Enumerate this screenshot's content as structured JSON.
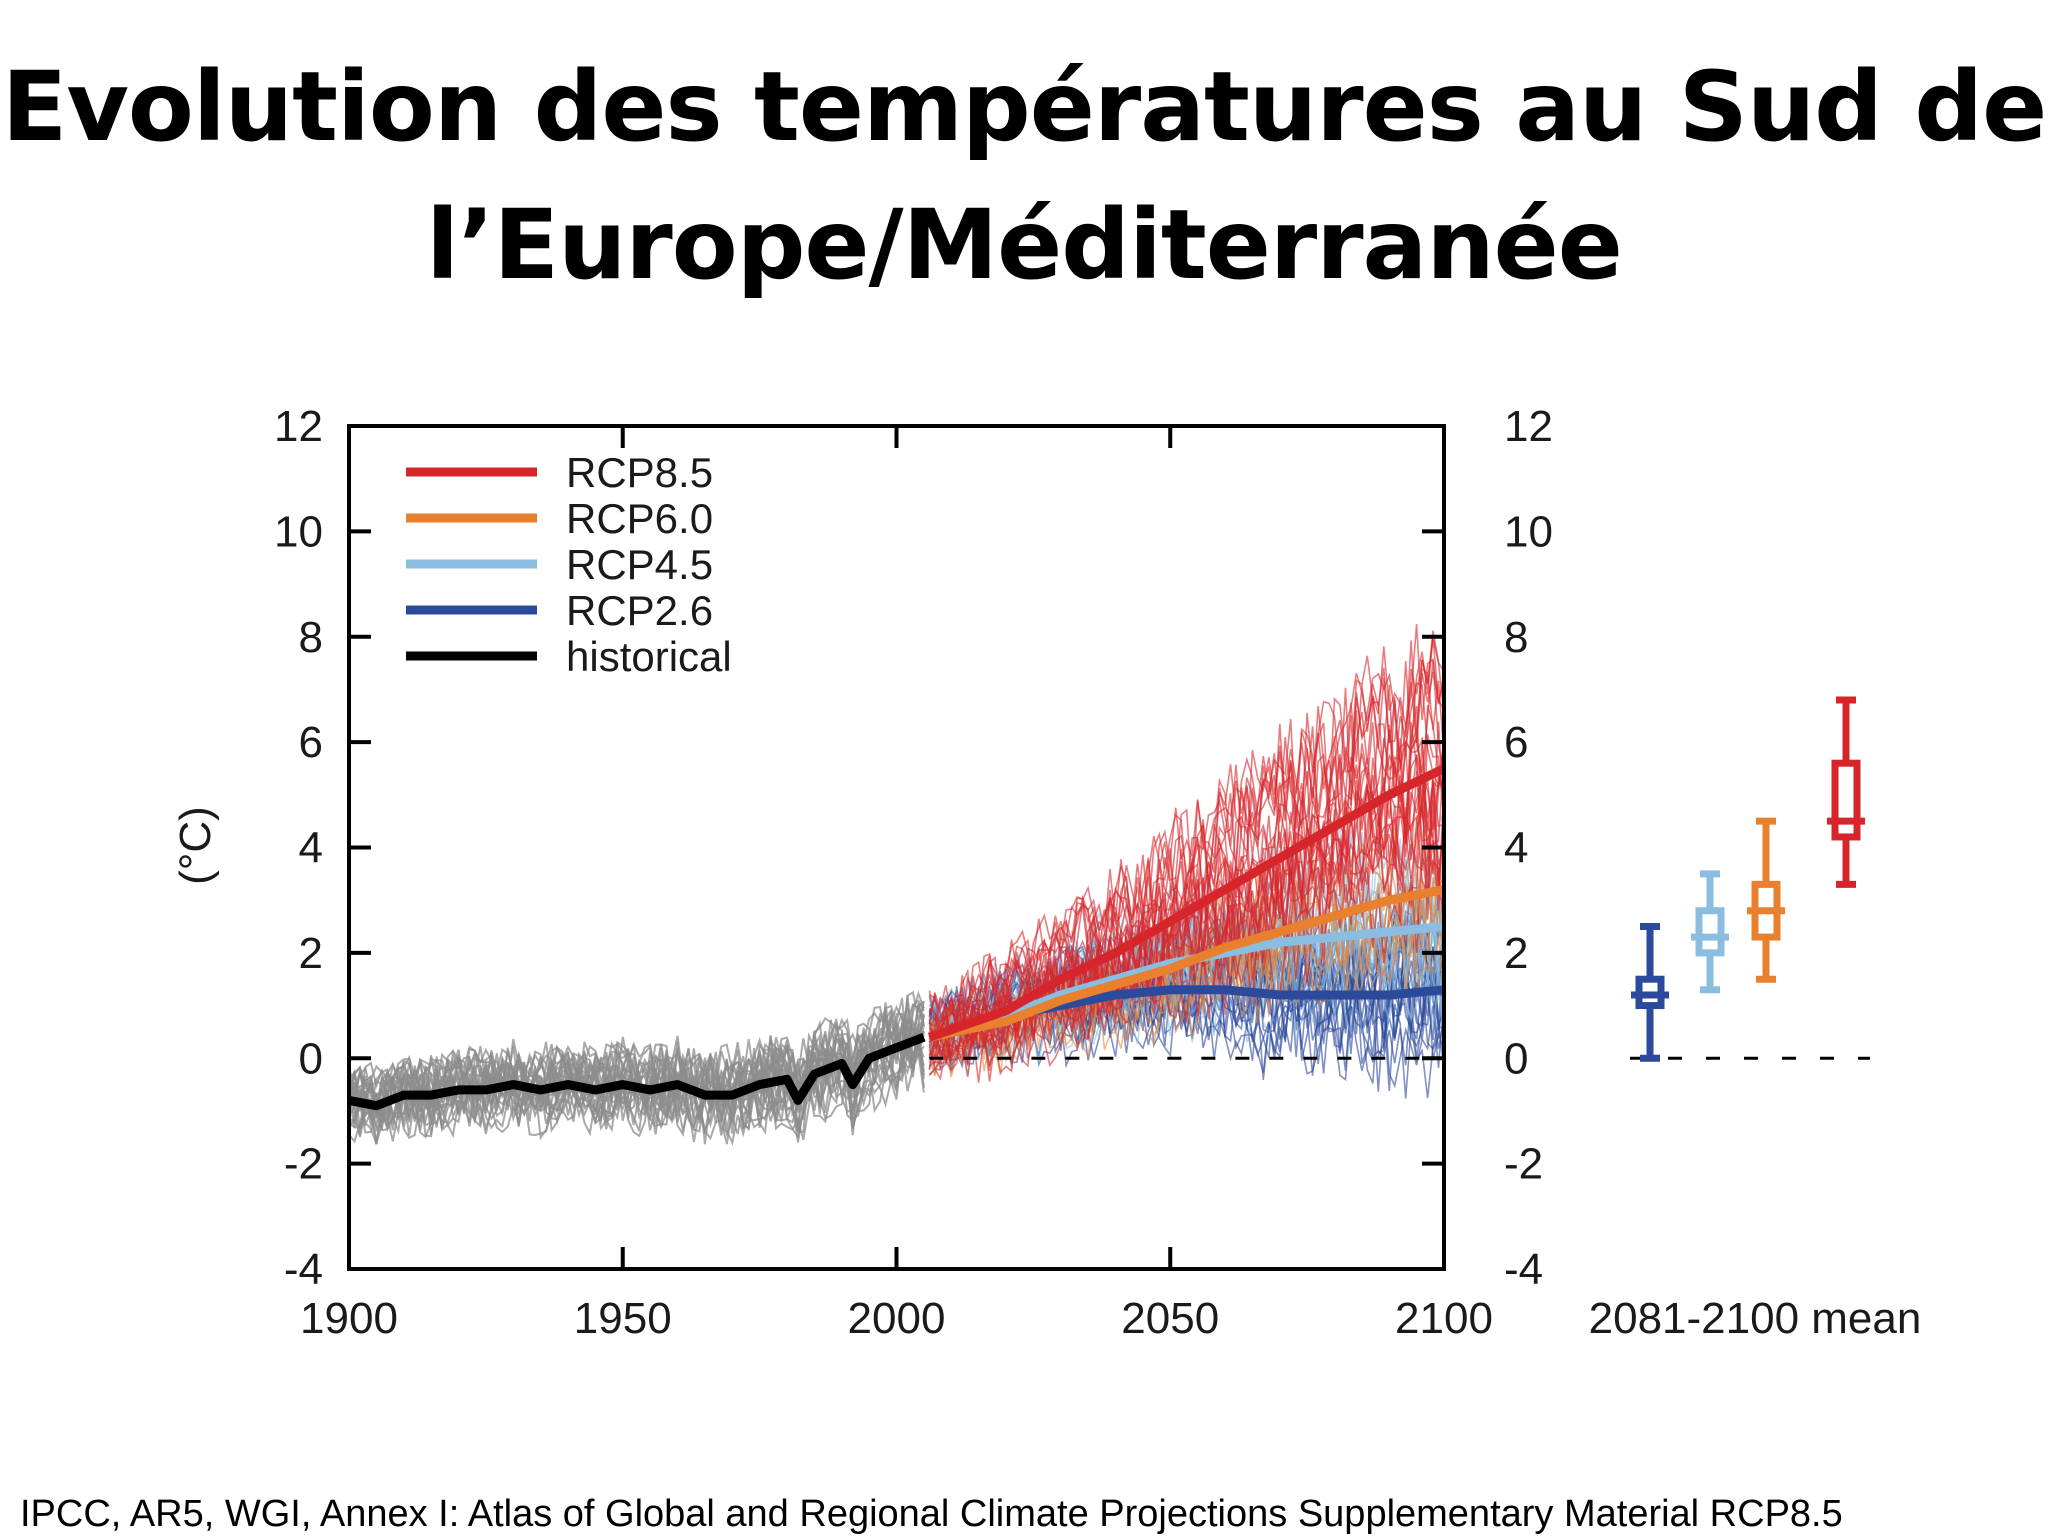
{
  "slide": {
    "title_line1": "Evolution des températures au Sud de",
    "title_line2": "l’Europe/Méditerranée",
    "source": "IPCC, AR5, WGI, Annex I: Atlas of Global and Regional Climate Projections Supplementary Material RCP8.5"
  },
  "colors": {
    "rcp85": "#d7262b",
    "rcp60": "#e8802e",
    "rcp45": "#8bbde0",
    "rcp26": "#2b4a9b",
    "historical": "#000000",
    "ensemble_historical": "#8c8c8c"
  },
  "chart_data": {
    "type": "line",
    "title": "",
    "xlabel": "",
    "ylabel": "(°C)",
    "xlim": [
      1900,
      2100
    ],
    "ylim": [
      -4,
      12
    ],
    "x_ticks": [
      "1900",
      "1950",
      "2000",
      "2050",
      "2100"
    ],
    "y_ticks": [
      "-4",
      "-2",
      "0",
      "2",
      "4",
      "6",
      "8",
      "10",
      "12"
    ],
    "right_y_ticks": [
      "-4",
      "-2",
      "0",
      "2",
      "4",
      "6",
      "8",
      "10",
      "12"
    ],
    "legend_position": "top-left",
    "zero_line": "dashed",
    "series": [
      {
        "name": "historical",
        "color_key": "historical",
        "x": [
          1900,
          1905,
          1910,
          1915,
          1920,
          1925,
          1930,
          1935,
          1940,
          1945,
          1950,
          1955,
          1960,
          1965,
          1970,
          1975,
          1980,
          1982,
          1985,
          1990,
          1992,
          1995,
          2000,
          2005
        ],
        "y": [
          -0.8,
          -0.9,
          -0.7,
          -0.7,
          -0.6,
          -0.6,
          -0.5,
          -0.6,
          -0.5,
          -0.6,
          -0.5,
          -0.6,
          -0.5,
          -0.7,
          -0.7,
          -0.5,
          -0.4,
          -0.8,
          -0.3,
          -0.1,
          -0.5,
          0.0,
          0.2,
          0.4
        ]
      },
      {
        "name": "RCP8.5",
        "color_key": "rcp85",
        "x": [
          2006,
          2020,
          2030,
          2040,
          2050,
          2060,
          2070,
          2080,
          2090,
          2100
        ],
        "y": [
          0.4,
          0.9,
          1.5,
          2.0,
          2.6,
          3.2,
          3.8,
          4.4,
          5.0,
          5.5
        ]
      },
      {
        "name": "RCP6.0",
        "color_key": "rcp60",
        "x": [
          2006,
          2020,
          2030,
          2040,
          2050,
          2060,
          2070,
          2080,
          2090,
          2100
        ],
        "y": [
          0.4,
          0.7,
          1.1,
          1.4,
          1.7,
          2.1,
          2.4,
          2.7,
          3.0,
          3.2
        ]
      },
      {
        "name": "RCP4.5",
        "color_key": "rcp45",
        "x": [
          2006,
          2020,
          2030,
          2040,
          2050,
          2060,
          2070,
          2080,
          2090,
          2100
        ],
        "y": [
          0.4,
          0.8,
          1.2,
          1.5,
          1.8,
          2.0,
          2.2,
          2.3,
          2.4,
          2.5
        ]
      },
      {
        "name": "RCP2.6",
        "color_key": "rcp26",
        "x": [
          2006,
          2020,
          2030,
          2040,
          2050,
          2060,
          2070,
          2080,
          2090,
          2100
        ],
        "y": [
          0.4,
          0.8,
          1.0,
          1.2,
          1.3,
          1.3,
          1.2,
          1.2,
          1.2,
          1.3
        ]
      }
    ],
    "boxplots": {
      "label": "2081-2100 mean",
      "items": [
        {
          "name": "RCP2.6",
          "color_key": "rcp26",
          "min": 0.0,
          "q1": 1.0,
          "median": 1.2,
          "q3": 1.5,
          "max": 2.5
        },
        {
          "name": "RCP4.5",
          "color_key": "rcp45",
          "min": 1.3,
          "q1": 2.0,
          "median": 2.3,
          "q3": 2.8,
          "max": 3.5
        },
        {
          "name": "RCP6.0",
          "color_key": "rcp60",
          "min": 1.5,
          "q1": 2.3,
          "median": 2.8,
          "q3": 3.3,
          "max": 4.5
        },
        {
          "name": "RCP8.5",
          "color_key": "rcp85",
          "min": 3.3,
          "q1": 4.2,
          "median": 4.5,
          "q3": 5.6,
          "max": 6.8
        }
      ]
    }
  }
}
